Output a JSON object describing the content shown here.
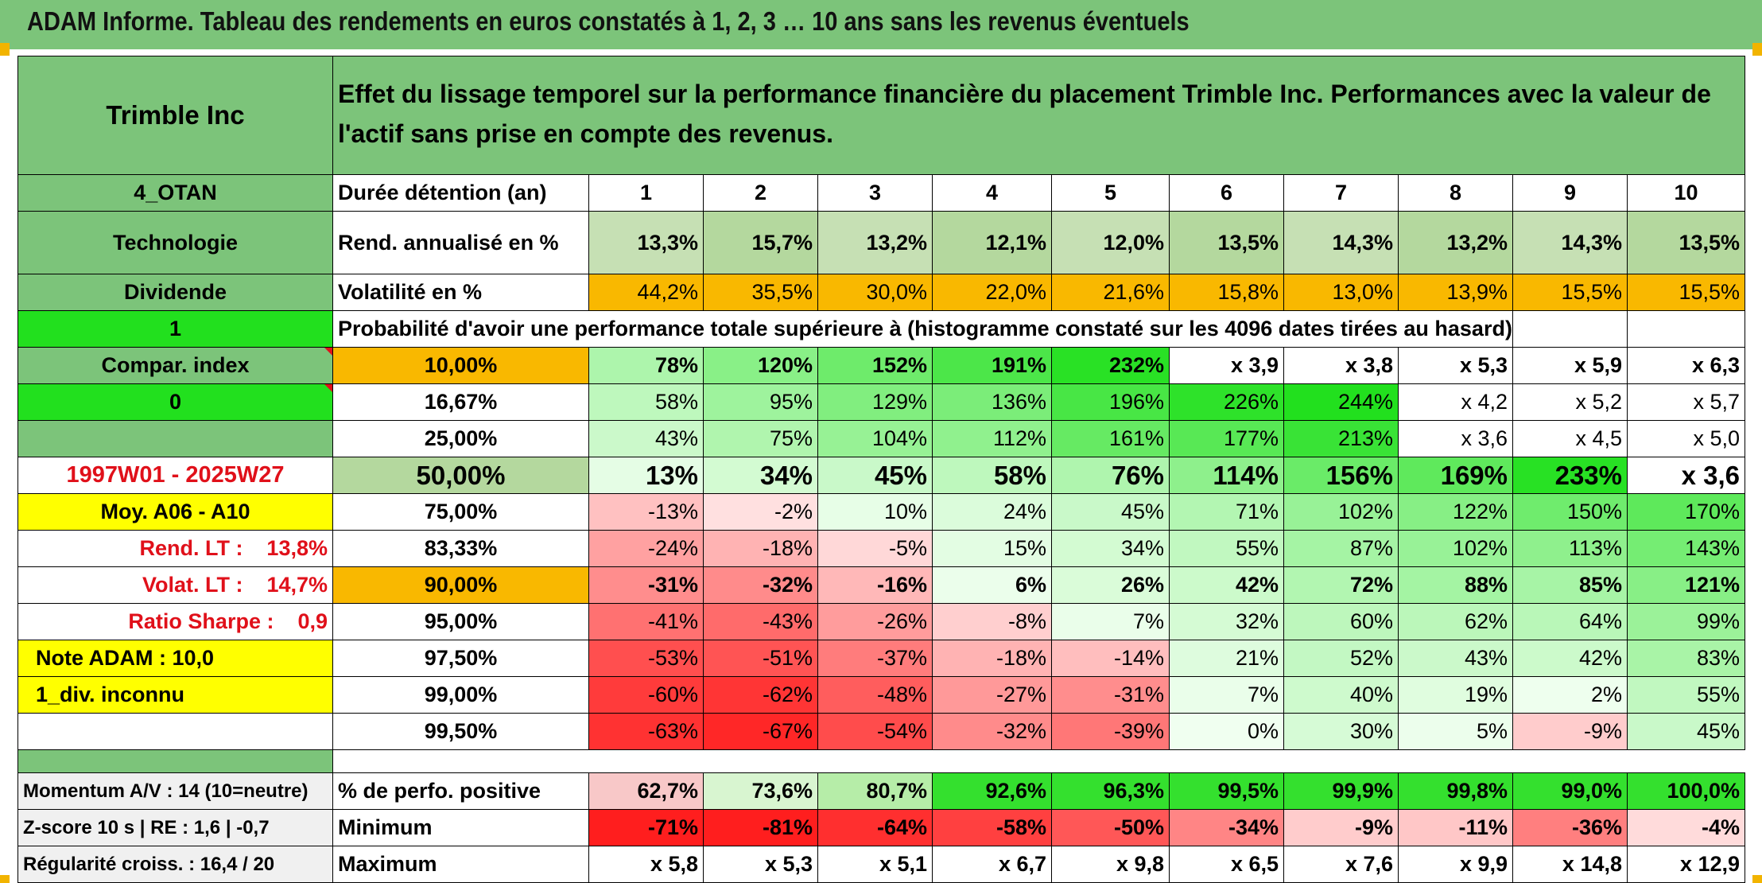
{
  "header": {
    "title": "ADAM Informe. Tableau des rendements en euros constatés à 1, 2, 3 … 10 ans sans les revenus éventuels"
  },
  "left": {
    "company": "Trimble Inc",
    "code": "4_OTAN",
    "sector": "Technologie",
    "dividend_label": "Dividende",
    "dividend_value": "1",
    "compar_label": "Compar. index",
    "compar_value": "0",
    "period": "1997W01 - 2025W27",
    "moy": "Moy. A06 - A10",
    "rend_lt": "Rend. LT :    13,8%",
    "volat_lt": "Volat. LT :    14,7%",
    "sharpe": "Ratio Sharpe :    0,9",
    "note": "Note ADAM : 10,0",
    "div": "1_div. inconnu",
    "momentum": "Momentum A/V : 14 (10=neutre)",
    "zscore": "Z-score 10 s | RE : 1,6 | -0,7",
    "regularite": "Régularité croiss. : 16,4 / 20"
  },
  "table": {
    "desc": "Effet du lissage temporel sur la performance financière du placement Trimble Inc. Performances avec la valeur de l'actif sans prise en compte des revenus.",
    "duration_label": "Durée détention (an)",
    "years": [
      "1",
      "2",
      "3",
      "4",
      "5",
      "6",
      "7",
      "8",
      "9",
      "10"
    ],
    "rend_label": "Rend. annualisé en %",
    "rend": [
      "13,3%",
      "15,7%",
      "13,2%",
      "12,1%",
      "12,0%",
      "13,5%",
      "14,3%",
      "13,2%",
      "14,3%",
      "13,5%"
    ],
    "vol_label": "Volatilité en %",
    "vol": [
      "44,2%",
      "35,5%",
      "30,0%",
      "22,0%",
      "21,6%",
      "15,8%",
      "13,0%",
      "13,9%",
      "15,5%",
      "15,5%"
    ],
    "prob_title": "Probabilité d'avoir une performance totale supérieure à (histogramme constaté sur les 4096 dates tirées au hasard)",
    "quantiles": [
      {
        "p": "10,00%",
        "v": [
          "78%",
          "120%",
          "152%",
          "191%",
          "232%",
          "x 3,9",
          "x 3,8",
          "x 5,3",
          "x 5,9",
          "x 6,3"
        ]
      },
      {
        "p": "16,67%",
        "v": [
          "58%",
          "95%",
          "129%",
          "136%",
          "196%",
          "226%",
          "244%",
          "x 4,2",
          "x 5,2",
          "x 5,7"
        ]
      },
      {
        "p": "25,00%",
        "v": [
          "43%",
          "75%",
          "104%",
          "112%",
          "161%",
          "177%",
          "213%",
          "x 3,6",
          "x 4,5",
          "x 5,0"
        ]
      },
      {
        "p": "50,00%",
        "v": [
          "13%",
          "34%",
          "45%",
          "58%",
          "76%",
          "114%",
          "156%",
          "169%",
          "233%",
          "x 3,6"
        ]
      },
      {
        "p": "75,00%",
        "v": [
          "-13%",
          "-2%",
          "10%",
          "24%",
          "45%",
          "71%",
          "102%",
          "122%",
          "150%",
          "170%"
        ]
      },
      {
        "p": "83,33%",
        "v": [
          "-24%",
          "-18%",
          "-5%",
          "15%",
          "34%",
          "55%",
          "87%",
          "102%",
          "113%",
          "143%"
        ]
      },
      {
        "p": "90,00%",
        "v": [
          "-31%",
          "-32%",
          "-16%",
          "6%",
          "26%",
          "42%",
          "72%",
          "88%",
          "85%",
          "121%"
        ]
      },
      {
        "p": "95,00%",
        "v": [
          "-41%",
          "-43%",
          "-26%",
          "-8%",
          "7%",
          "32%",
          "60%",
          "62%",
          "64%",
          "99%"
        ]
      },
      {
        "p": "97,50%",
        "v": [
          "-53%",
          "-51%",
          "-37%",
          "-18%",
          "-14%",
          "21%",
          "52%",
          "43%",
          "42%",
          "83%"
        ]
      },
      {
        "p": "99,00%",
        "v": [
          "-60%",
          "-62%",
          "-48%",
          "-27%",
          "-31%",
          "7%",
          "40%",
          "19%",
          "2%",
          "55%"
        ]
      },
      {
        "p": "99,50%",
        "v": [
          "-63%",
          "-67%",
          "-54%",
          "-32%",
          "-39%",
          "0%",
          "30%",
          "5%",
          "-9%",
          "45%"
        ]
      }
    ],
    "pos_label": "% de perfo. positive",
    "pos": [
      "62,7%",
      "73,6%",
      "80,7%",
      "92,6%",
      "96,3%",
      "99,5%",
      "99,9%",
      "99,8%",
      "99,0%",
      "100,0%"
    ],
    "min_label": "Minimum",
    "min": [
      "-71%",
      "-81%",
      "-64%",
      "-58%",
      "-50%",
      "-34%",
      "-9%",
      "-11%",
      "-36%",
      "-4%"
    ],
    "max_label": "Maximum",
    "max": [
      "x 5,8",
      "x 5,3",
      "x 5,1",
      "x 6,7",
      "x 9,8",
      "x 6,5",
      "x 7,6",
      "x 9,9",
      "x 14,8",
      "x 12,9"
    ]
  },
  "colors": {
    "header_green": "#7cc47a",
    "bright_green": "#22e01e",
    "orange": "#f9b800",
    "yellow": "#ffff00",
    "red_text": "#e0101a"
  }
}
